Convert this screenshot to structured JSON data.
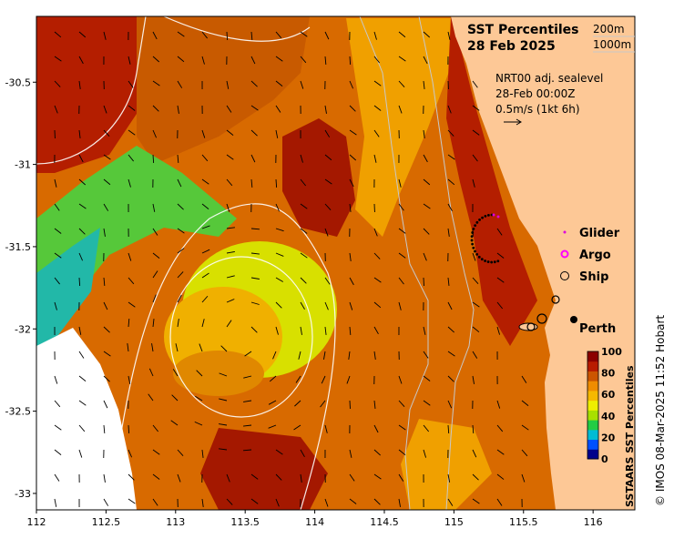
{
  "title": {
    "line1": "SST Percentiles",
    "line2": "28 Feb 2025"
  },
  "isobaths": [
    "200m",
    "1000m"
  ],
  "current_info": {
    "line1": "NRT00 adj. sealevel",
    "line2": "28-Feb 00:00Z",
    "line3": "0.5m/s (1kt 6h)"
  },
  "legend": [
    {
      "label": "Glider",
      "symbol": "dot",
      "color": "#dd00dd"
    },
    {
      "label": "Argo",
      "symbol": "ring",
      "color": "#ff00ff"
    },
    {
      "label": "Ship",
      "symbol": "ring",
      "color": "#000000"
    }
  ],
  "city": {
    "label": "Perth",
    "lon": 115.86,
    "lat": -31.95
  },
  "colorbar": {
    "title": "SSTAARS SST Percentiles",
    "ticks": [
      "0",
      "20",
      "40",
      "60",
      "80",
      "100"
    ],
    "colors": [
      "#00008b",
      "#0050ff",
      "#00bcd4",
      "#22cc44",
      "#a8e000",
      "#eeee00",
      "#f5b800",
      "#ef8c00",
      "#cc5500",
      "#b81c00",
      "#8b0000"
    ]
  },
  "credit": "© IMOS 08-Mar-2025 11:52 Hobart",
  "axes": {
    "x_ticks": [
      "112",
      "112.5",
      "113",
      "113.5",
      "114",
      "114.5",
      "115",
      "115.5",
      "116"
    ],
    "y_ticks": [
      "-30.5",
      "-31",
      "-31.5",
      "-32",
      "-32.5",
      "-33"
    ],
    "x_range": [
      112,
      116.3
    ],
    "y_range": [
      -33.1,
      -30.1
    ]
  },
  "colors": {
    "land": "#fdc896",
    "deep_red": "#b41e00",
    "orange_red": "#c85000",
    "orange": "#e07a00",
    "amber": "#f0a000"
  }
}
